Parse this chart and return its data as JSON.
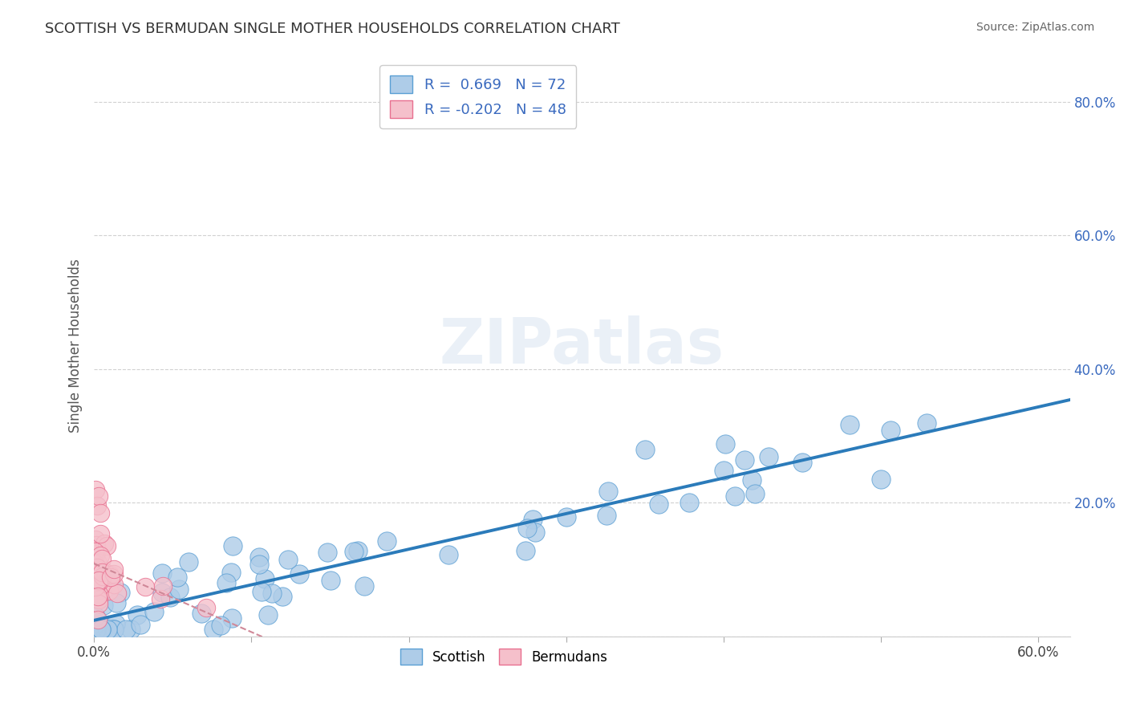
{
  "title": "SCOTTISH VS BERMUDAN SINGLE MOTHER HOUSEHOLDS CORRELATION CHART",
  "source": "Source: ZipAtlas.com",
  "ylabel": "Single Mother Households",
  "xlim": [
    0.0,
    0.62
  ],
  "ylim": [
    0.0,
    0.87
  ],
  "xticks": [
    0.0,
    0.1,
    0.2,
    0.3,
    0.4,
    0.5,
    0.6
  ],
  "xticklabels": [
    "0.0%",
    "",
    "",
    "",
    "",
    "",
    "60.0%"
  ],
  "yticks": [
    0.0,
    0.2,
    0.4,
    0.6,
    0.8
  ],
  "yticklabels": [
    "",
    "20.0%",
    "40.0%",
    "60.0%",
    "80.0%"
  ],
  "scottish_R": 0.669,
  "scottish_N": 72,
  "bermudan_R": -0.202,
  "bermudan_N": 48,
  "scottish_color": "#aecce8",
  "bermudan_color": "#f5c0cb",
  "scottish_edge_color": "#5a9fd4",
  "bermudan_edge_color": "#e87090",
  "scottish_line_color": "#2b7bba",
  "bermudan_line_color": "#d08898",
  "background_color": "#ffffff",
  "watermark": "ZIPatlas",
  "legend_line1": "R =  0.669   N = 72",
  "legend_line2": "R = -0.202   N = 48",
  "legend_text_color": "#3a6abf",
  "title_color": "#333333",
  "source_color": "#666666",
  "grid_color": "#cccccc",
  "tick_color": "#aaaaaa"
}
